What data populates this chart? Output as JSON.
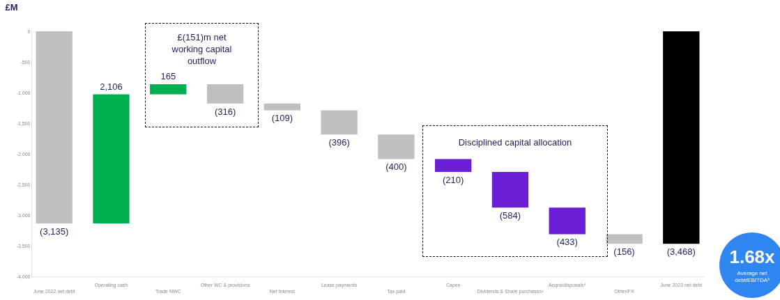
{
  "chart_data": {
    "type": "bar",
    "ylabel": "£M",
    "categories": [
      "June 2022 net debt",
      "Operating cash",
      "Trade NWC",
      "Other WC & provisions",
      "Net Interest",
      "Lease payments",
      "Tax paid",
      "Capex",
      "Dividends & Share purchases¹",
      "Acqns/disposals⁴",
      "Other/FX",
      "June 2023 net debt"
    ],
    "base": [
      0,
      -3135,
      -1029,
      -864,
      -1180,
      -1289,
      -1685,
      -2085,
      -2295,
      -2879,
      -3312,
      0
    ],
    "values": [
      -3135,
      2106,
      165,
      -316,
      -109,
      -396,
      -400,
      -210,
      -584,
      -433,
      -156,
      -3468
    ],
    "value_labels": [
      "(3,135)",
      "2,106",
      "165",
      "(316)",
      "(109)",
      "(396)",
      "(400)",
      "(210)",
      "(584)",
      "(433)",
      "(156)",
      "(3,468)"
    ],
    "colors": [
      "#bfbfbf",
      "#00b050",
      "#00b050",
      "#bfbfbf",
      "#bfbfbf",
      "#bfbfbf",
      "#bfbfbf",
      "#6a1ed6",
      "#6a1ed6",
      "#6a1ed6",
      "#bfbfbf",
      "#000000"
    ],
    "ylim": [
      -4000,
      0
    ],
    "yticks": [
      {
        "value": -4000,
        "label": "-4,000"
      },
      {
        "value": -3500,
        "label": "-3,500"
      },
      {
        "value": -3000,
        "label": "-3,000"
      },
      {
        "value": -2500,
        "label": "-2,500"
      },
      {
        "value": -2000,
        "label": "-2,000"
      },
      {
        "value": -1500,
        "label": "-1,500"
      },
      {
        "value": -1000,
        "label": "-1,000"
      },
      -500,
      0
    ],
    "grid": false,
    "legend": false,
    "annotations": [
      "£(151)m net working capital outflow",
      "Disciplined capital allocation",
      "1.68x",
      "Average net debt/EBITDA³"
    ]
  }
}
